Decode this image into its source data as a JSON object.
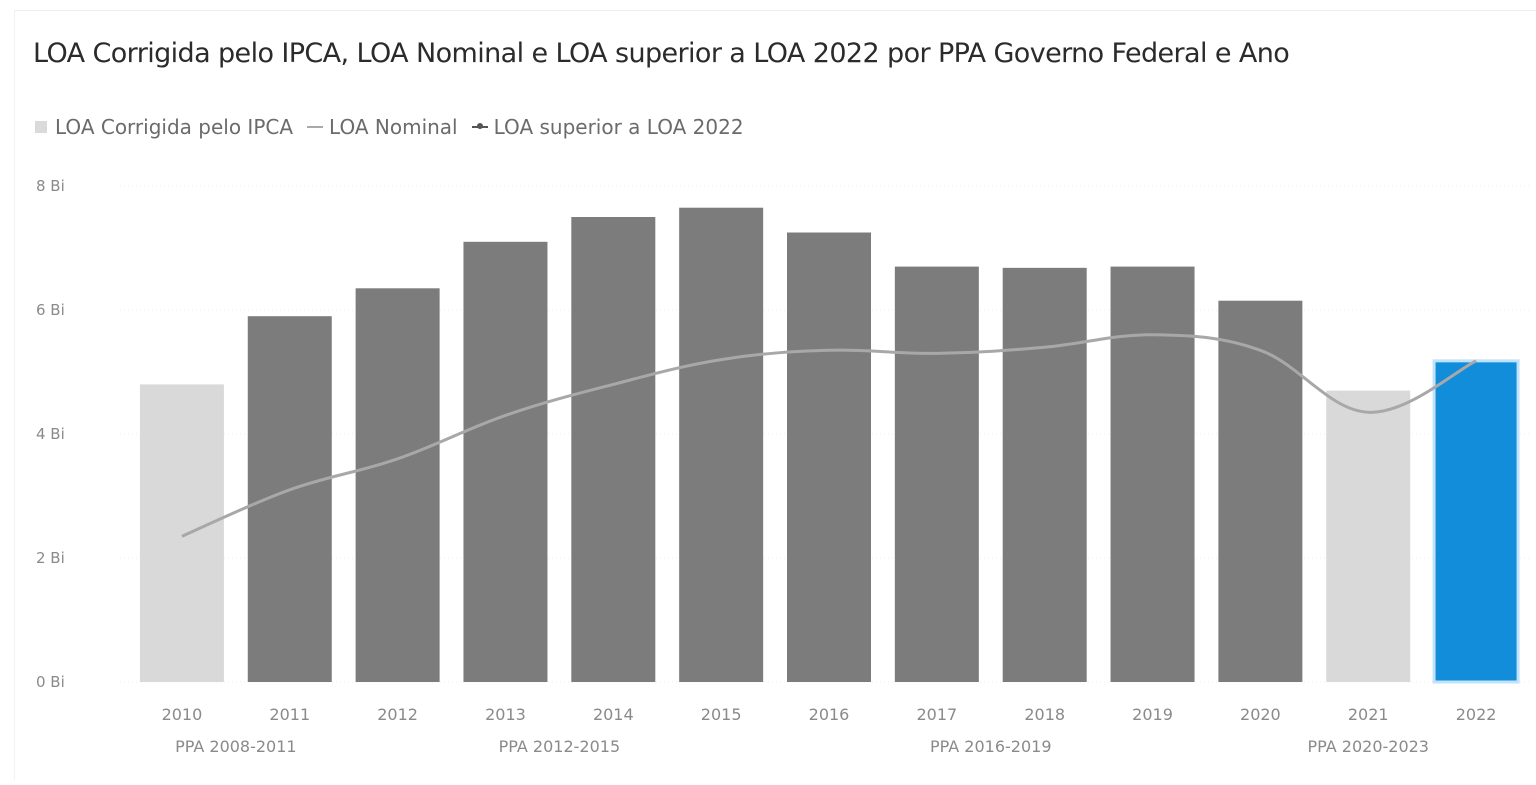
{
  "title": "LOA Corrigida pelo IPCA, LOA Nominal e LOA superior a LOA 2022 por PPA Governo Federal e Ano",
  "legend": [
    {
      "label": "LOA Corrigida pelo IPCA",
      "icon": "bar-swatch-icon"
    },
    {
      "label": "LOA Nominal",
      "icon": "line-swatch-icon"
    },
    {
      "label": "LOA superior a LOA 2022",
      "icon": "line-marker-swatch-icon"
    }
  ],
  "colors": {
    "bar_default": "#d9d9d9",
    "bar_above_2022": "#7c7c7c",
    "bar_2022": "#118dda",
    "bar_2022_outline": "#bfe3fb",
    "line_nominal": "#a8a8a8",
    "gridline": "#ededed",
    "text": "#2b2b2b"
  },
  "chart_data": {
    "type": "bar",
    "title": "LOA Corrigida pelo IPCA, LOA Nominal e LOA superior a LOA 2022 por PPA Governo Federal e Ano",
    "y_ticks": [
      "0 Bi",
      "2 Bi",
      "4 Bi",
      "6 Bi",
      "8 Bi"
    ],
    "ylim": [
      0,
      8
    ],
    "grid": true,
    "legend_position": "top-left",
    "categories": [
      "2010",
      "2011",
      "2012",
      "2013",
      "2014",
      "2015",
      "2016",
      "2017",
      "2018",
      "2019",
      "2020",
      "2021",
      "2022"
    ],
    "groups": [
      {
        "label": "PPA 2008-2011",
        "years": [
          "2010",
          "2011"
        ]
      },
      {
        "label": "PPA 2012-2015",
        "years": [
          "2012",
          "2013",
          "2014",
          "2015"
        ]
      },
      {
        "label": "PPA 2016-2019",
        "years": [
          "2016",
          "2017",
          "2018",
          "2019"
        ]
      },
      {
        "label": "PPA 2020-2023",
        "years": [
          "2020",
          "2021",
          "2022"
        ]
      }
    ],
    "series": [
      {
        "name": "LOA Corrigida pelo IPCA",
        "kind": "bar",
        "values": [
          4.8,
          5.9,
          6.35,
          7.1,
          7.5,
          7.65,
          7.25,
          6.7,
          6.68,
          6.7,
          6.15,
          4.7,
          5.18
        ]
      },
      {
        "name": "LOA Nominal",
        "kind": "line",
        "values": [
          2.35,
          3.1,
          3.6,
          4.3,
          4.8,
          5.2,
          5.35,
          5.3,
          5.4,
          5.6,
          5.35,
          4.35,
          5.18
        ]
      },
      {
        "name": "LOA superior a LOA 2022",
        "kind": "bar-highlight",
        "values": [
          false,
          true,
          true,
          true,
          true,
          true,
          true,
          true,
          true,
          true,
          true,
          false,
          false
        ]
      }
    ],
    "highlight_category": "2022"
  }
}
